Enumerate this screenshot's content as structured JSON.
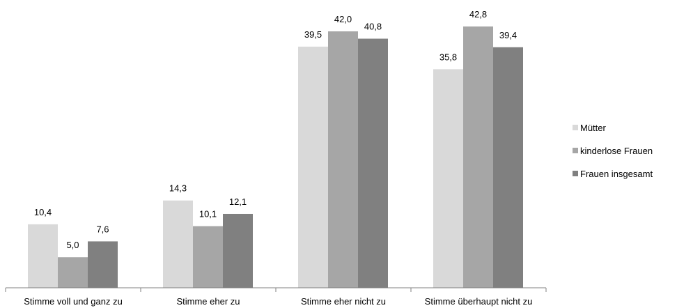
{
  "chart_data": {
    "type": "bar",
    "categories": [
      "Stimme voll und ganz zu",
      "Stimme eher zu",
      "Stimme eher nicht zu",
      "Stimme überhaupt nicht zu"
    ],
    "series": [
      {
        "name": "Mütter",
        "values": [
          "10,4",
          "14,3",
          "39,5",
          "35,8"
        ],
        "color": "#d9d9d9"
      },
      {
        "name": "kinderlose Frauen",
        "values": [
          "5,0",
          "10,1",
          "42,0",
          "42,8"
        ],
        "color": "#a6a6a6"
      },
      {
        "name": "Frauen insgesamt",
        "values": [
          "7,6",
          "12,1",
          "40,8",
          "39,4"
        ],
        "color": "#808080"
      }
    ],
    "ylim": [
      0,
      45
    ],
    "grid": false,
    "legend_position": "right",
    "title": "",
    "xlabel": "",
    "ylabel": ""
  }
}
